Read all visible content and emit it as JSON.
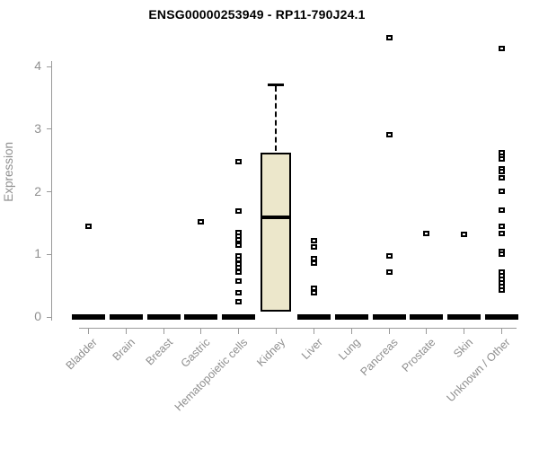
{
  "title": "ENSG00000253949 - RP11-790J24.1",
  "y_axis": {
    "label": "Expression"
  },
  "chart_data": {
    "type": "boxplot",
    "title": "ENSG00000253949 - RP11-790J24.1",
    "xlabel": "",
    "ylabel": "Expression",
    "ylim": [
      0,
      4.5
    ],
    "yticks": [
      0,
      1,
      2,
      3,
      4
    ],
    "grid": false,
    "legend": "none",
    "xtick_rotation_deg": 45,
    "categories": [
      "Bladder",
      "Brain",
      "Breast",
      "Gastric",
      "Hematopoietic cells",
      "Kidney",
      "Liver",
      "Lung",
      "Pancreas",
      "Prostate",
      "Skin",
      "Unknown / Other"
    ],
    "boxes": [
      {
        "category": "Bladder",
        "q1": 0,
        "median": 0,
        "q3": 0,
        "whisker_low": 0,
        "whisker_high": 0,
        "points": [
          1.45
        ]
      },
      {
        "category": "Brain",
        "q1": 0,
        "median": 0,
        "q3": 0,
        "whisker_low": 0,
        "whisker_high": 0,
        "points": []
      },
      {
        "category": "Breast",
        "q1": 0,
        "median": 0,
        "q3": 0,
        "whisker_low": 0,
        "whisker_high": 0,
        "points": []
      },
      {
        "category": "Gastric",
        "q1": 0,
        "median": 0,
        "q3": 0,
        "whisker_low": 0,
        "whisker_high": 0,
        "points": [
          1.52
        ]
      },
      {
        "category": "Hematopoietic cells",
        "q1": 0,
        "median": 0,
        "q3": 0,
        "whisker_low": 0,
        "whisker_high": 0,
        "points": [
          2.48,
          1.69,
          1.35,
          1.29,
          1.23,
          1.15,
          0.97,
          0.92,
          0.85,
          0.79,
          0.72,
          0.57,
          0.39,
          0.25
        ]
      },
      {
        "category": "Kidney",
        "q1": 0.08,
        "median": 1.59,
        "q3": 2.62,
        "whisker_low": 0.08,
        "whisker_high": 3.71,
        "points": []
      },
      {
        "category": "Liver",
        "q1": 0,
        "median": 0,
        "q3": 0,
        "whisker_low": 0,
        "whisker_high": 0,
        "points": [
          1.22,
          1.12,
          0.93,
          0.86,
          0.46,
          0.39
        ]
      },
      {
        "category": "Lung",
        "q1": 0,
        "median": 0,
        "q3": 0,
        "whisker_low": 0,
        "whisker_high": 0,
        "points": []
      },
      {
        "category": "Pancreas",
        "q1": 0,
        "median": 0,
        "q3": 0,
        "whisker_low": 0,
        "whisker_high": 0,
        "points": [
          4.46,
          2.91,
          0.98,
          0.72
        ]
      },
      {
        "category": "Prostate",
        "q1": 0,
        "median": 0,
        "q3": 0,
        "whisker_low": 0,
        "whisker_high": 0,
        "points": [
          1.33
        ]
      },
      {
        "category": "Skin",
        "q1": 0,
        "median": 0,
        "q3": 0,
        "whisker_low": 0,
        "whisker_high": 0,
        "points": [
          1.32
        ]
      },
      {
        "category": "Unknown / Other",
        "q1": 0,
        "median": 0,
        "q3": 0,
        "whisker_low": 0,
        "whisker_high": 0,
        "points": [
          4.29,
          2.63,
          2.57,
          2.52,
          2.36,
          2.32,
          2.22,
          2.01,
          1.71,
          1.45,
          1.33,
          1.05,
          1.0,
          0.72,
          0.66,
          0.6,
          0.54,
          0.49,
          0.43
        ]
      }
    ],
    "colors": {
      "box_fill": "#ECE7CB",
      "box_border": "#000000",
      "median": "#000000",
      "collapsed_box": "#000000",
      "point_border": "#000000",
      "point_fill": "#FFFFFF",
      "axis_line": "#9A9A9A",
      "axis_text": "#8F8F8F",
      "title_text": "#000000",
      "background": "#FFFFFF"
    }
  }
}
